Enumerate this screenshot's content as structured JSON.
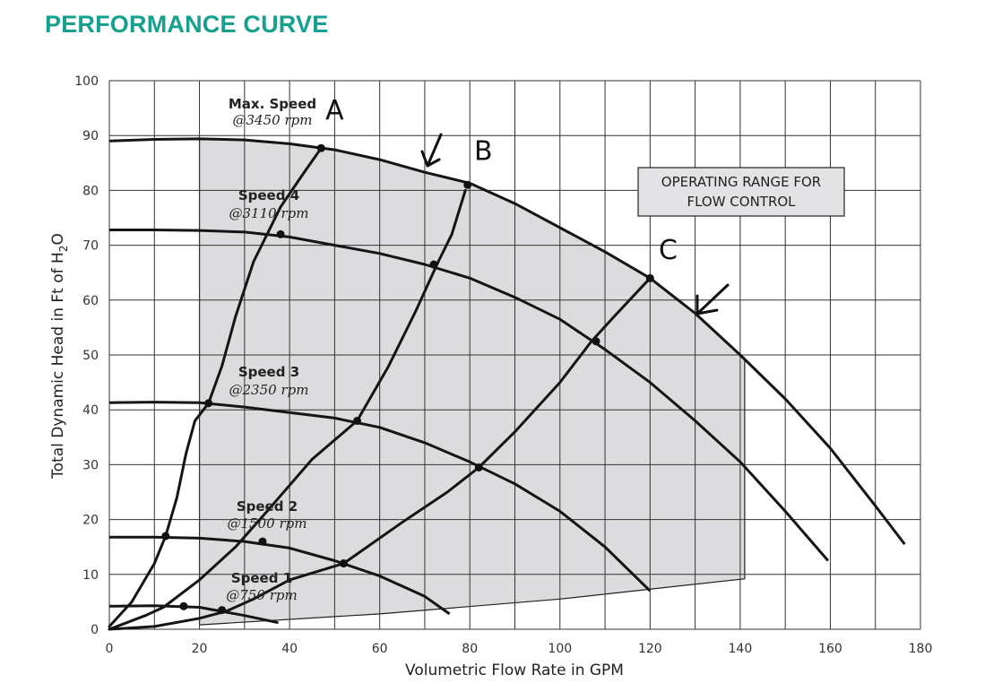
{
  "header": {
    "title": "PERFORMANCE CURVE"
  },
  "chart_data": {
    "type": "line",
    "title": "PERFORMANCE CURVE",
    "xlabel": "Volumetric Flow Rate in GPM",
    "ylabel": "Total Dynamic Head in Ft of H2O",
    "ylabel_parts": {
      "main": "Total Dynamic Head in Ft of H",
      "sub": "2",
      "tail": "O"
    },
    "xlim": [
      0,
      180
    ],
    "ylim": [
      0,
      100
    ],
    "x_ticks": [
      0,
      20,
      40,
      60,
      80,
      100,
      120,
      140,
      160,
      180
    ],
    "y_ticks": [
      0,
      10,
      20,
      30,
      40,
      50,
      60,
      70,
      80,
      90,
      100
    ],
    "grid": true,
    "series": [
      {
        "name": "Max. Speed",
        "rpm_label": "@3450 rpm",
        "points": [
          [
            0,
            89
          ],
          [
            10,
            89.3
          ],
          [
            20,
            89.4
          ],
          [
            30,
            89.2
          ],
          [
            40,
            88.5
          ],
          [
            50,
            87.4
          ],
          [
            60,
            85.6
          ],
          [
            70,
            83.3
          ],
          [
            80,
            81.3
          ],
          [
            90,
            77.6
          ],
          [
            100,
            73.2
          ],
          [
            110,
            68.8
          ],
          [
            120,
            64
          ],
          [
            130,
            57.6
          ],
          [
            140,
            50
          ],
          [
            150,
            42
          ],
          [
            160,
            33
          ],
          [
            170,
            22.5
          ],
          [
            176.5,
            15.5
          ]
        ]
      },
      {
        "name": "Speed 4",
        "rpm_label": "@3110 rpm",
        "points": [
          [
            0,
            72.8
          ],
          [
            10,
            72.8
          ],
          [
            20,
            72.7
          ],
          [
            30,
            72.4
          ],
          [
            40,
            71.5
          ],
          [
            50,
            70
          ],
          [
            60,
            68.5
          ],
          [
            70,
            66.5
          ],
          [
            80,
            64
          ],
          [
            90,
            60.5
          ],
          [
            100,
            56.5
          ],
          [
            110,
            51
          ],
          [
            120,
            45
          ],
          [
            130,
            38
          ],
          [
            140,
            30.5
          ],
          [
            150,
            21.5
          ],
          [
            159.5,
            12.5
          ]
        ]
      },
      {
        "name": "Speed 3",
        "rpm_label": "@2350 rpm",
        "points": [
          [
            0,
            41.3
          ],
          [
            10,
            41.4
          ],
          [
            20,
            41.3
          ],
          [
            30,
            40.5
          ],
          [
            40,
            39.5
          ],
          [
            50,
            38.5
          ],
          [
            60,
            36.8
          ],
          [
            70,
            34
          ],
          [
            80,
            30.5
          ],
          [
            90,
            26.5
          ],
          [
            100,
            21.5
          ],
          [
            110,
            15
          ],
          [
            120,
            7
          ]
        ]
      },
      {
        "name": "Speed 2",
        "rpm_label": "@1500 rpm",
        "points": [
          [
            0,
            16.8
          ],
          [
            10,
            16.8
          ],
          [
            20,
            16.6
          ],
          [
            30,
            16
          ],
          [
            40,
            14.8
          ],
          [
            50,
            12.5
          ],
          [
            60,
            9.7
          ],
          [
            70,
            6
          ],
          [
            75.5,
            2.8
          ]
        ]
      },
      {
        "name": "Speed 1",
        "rpm_label": "@750 rpm",
        "points": [
          [
            0,
            4.2
          ],
          [
            10,
            4.3
          ],
          [
            20,
            4
          ],
          [
            30,
            2.5
          ],
          [
            37.5,
            1.2
          ]
        ]
      }
    ],
    "system_curves": [
      {
        "name": "A",
        "points": [
          [
            0,
            0.5
          ],
          [
            5,
            5
          ],
          [
            10,
            12
          ],
          [
            12.5,
            17
          ],
          [
            15,
            24
          ],
          [
            17,
            32
          ],
          [
            19,
            38
          ],
          [
            22,
            41.2
          ],
          [
            25,
            48
          ],
          [
            28,
            57
          ],
          [
            32,
            67
          ],
          [
            38,
            77
          ],
          [
            43,
            83
          ],
          [
            47,
            87.7
          ]
        ]
      },
      {
        "name": "B",
        "points": [
          [
            0,
            0
          ],
          [
            8,
            2.5
          ],
          [
            12,
            4
          ],
          [
            20,
            9
          ],
          [
            28,
            15
          ],
          [
            35,
            21.5
          ],
          [
            45,
            31
          ],
          [
            55,
            38
          ],
          [
            62,
            48
          ],
          [
            68,
            58
          ],
          [
            73,
            67
          ],
          [
            76,
            72
          ],
          [
            79,
            80
          ]
        ]
      },
      {
        "name": "C",
        "points": [
          [
            0,
            0
          ],
          [
            10,
            0.5
          ],
          [
            20,
            2
          ],
          [
            26,
            3.3
          ],
          [
            32,
            5.5
          ],
          [
            40,
            9
          ],
          [
            52,
            12
          ],
          [
            65,
            19.5
          ],
          [
            75,
            25
          ],
          [
            82,
            29.5
          ],
          [
            90,
            36
          ],
          [
            100,
            45
          ],
          [
            107,
            52.5
          ],
          [
            112,
            57
          ],
          [
            120,
            64
          ]
        ]
      }
    ],
    "operating_points": [
      [
        47,
        87.7
      ],
      [
        79.5,
        81
      ],
      [
        120,
        64
      ],
      [
        38,
        72
      ],
      [
        72,
        66.5
      ],
      [
        108,
        52.5
      ],
      [
        22,
        41.2
      ],
      [
        55,
        38
      ],
      [
        82,
        29.5
      ],
      [
        12.5,
        17
      ],
      [
        34,
        16
      ],
      [
        52,
        12
      ],
      [
        16.5,
        4.2
      ],
      [
        25,
        3.5
      ]
    ],
    "operating_region": {
      "label": "OPERATING RANGE FOR FLOW CONTROL",
      "label_lines": [
        "OPERATING RANGE FOR",
        "FLOW CONTROL"
      ],
      "fill": "#dcdcde",
      "x_min": 20,
      "x_max": 141
    },
    "annotations": [
      {
        "text": "A",
        "x": 50,
        "y": 93
      },
      {
        "text": "B",
        "x": 83,
        "y": 85.5
      },
      {
        "text": "C",
        "x": 124,
        "y": 67.5
      }
    ]
  }
}
